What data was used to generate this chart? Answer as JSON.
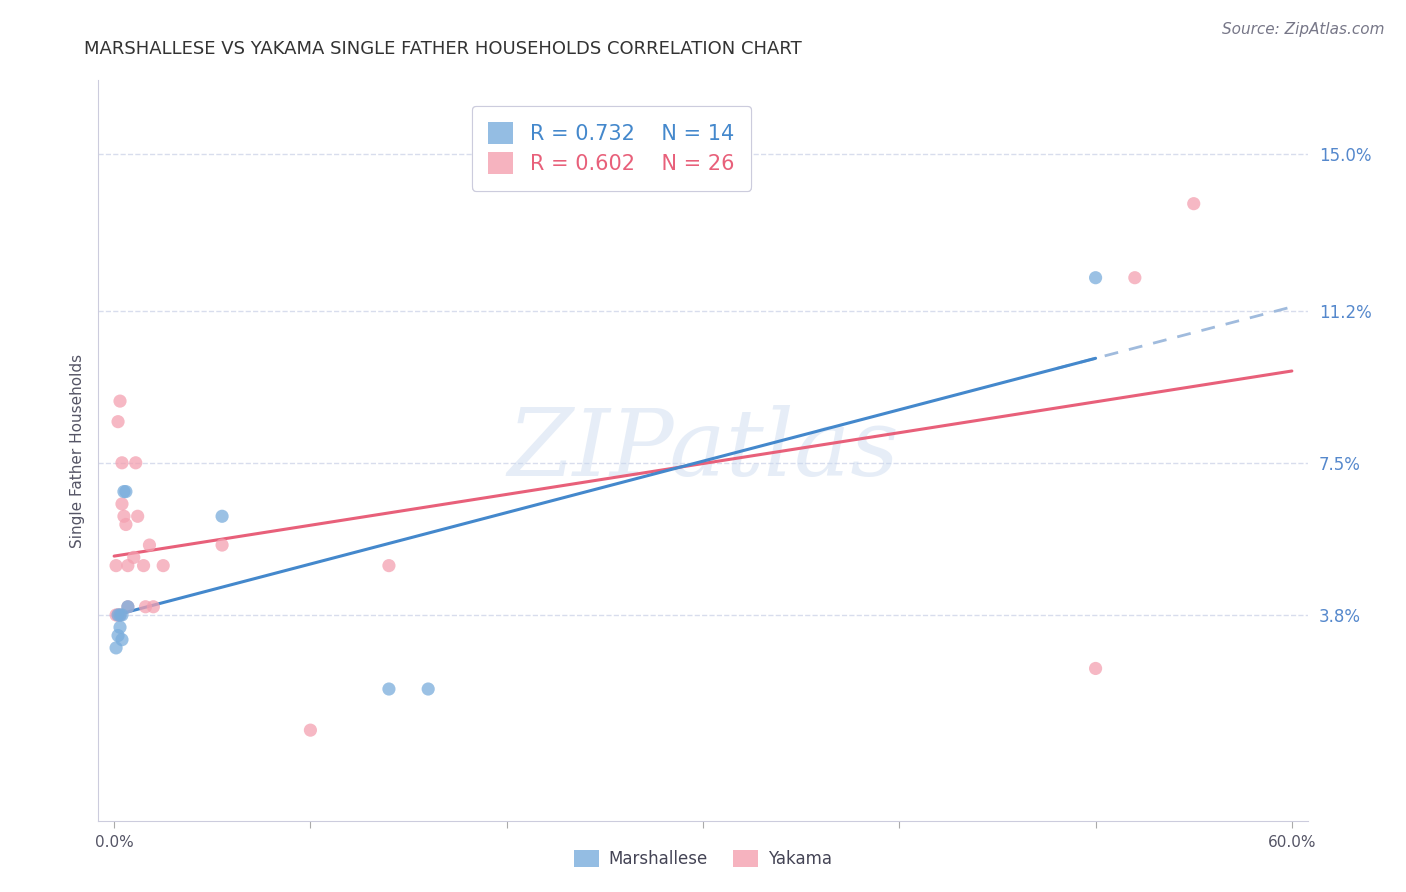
{
  "title": "MARSHALLESE VS YAKAMA SINGLE FATHER HOUSEHOLDS CORRELATION CHART",
  "source": "Source: ZipAtlas.com",
  "ylabel": "Single Father Households",
  "watermark": "ZIPatlas",
  "marshallese_color": "#7aaddc",
  "yakama_color": "#f4a0b0",
  "marshallese_label": "Marshallese",
  "yakama_label": "Yakama",
  "legend_blue_r": "R = 0.732",
  "legend_blue_n": "N = 14",
  "legend_pink_r": "R = 0.602",
  "legend_pink_n": "N = 26",
  "marshallese_x": [
    0.001,
    0.002,
    0.002,
    0.003,
    0.003,
    0.004,
    0.004,
    0.005,
    0.006,
    0.007,
    0.055,
    0.14,
    0.16,
    0.5
  ],
  "marshallese_y": [
    0.03,
    0.033,
    0.038,
    0.038,
    0.035,
    0.032,
    0.038,
    0.068,
    0.068,
    0.04,
    0.062,
    0.02,
    0.02,
    0.12
  ],
  "yakama_x": [
    0.001,
    0.001,
    0.002,
    0.002,
    0.003,
    0.003,
    0.004,
    0.004,
    0.005,
    0.006,
    0.007,
    0.007,
    0.01,
    0.011,
    0.012,
    0.015,
    0.016,
    0.018,
    0.02,
    0.025,
    0.055,
    0.1,
    0.14,
    0.5,
    0.52,
    0.55
  ],
  "yakama_y": [
    0.038,
    0.05,
    0.038,
    0.085,
    0.038,
    0.09,
    0.065,
    0.075,
    0.062,
    0.06,
    0.05,
    0.04,
    0.052,
    0.075,
    0.062,
    0.05,
    0.04,
    0.055,
    0.04,
    0.05,
    0.055,
    0.01,
    0.05,
    0.025,
    0.12,
    0.138
  ],
  "title_fontsize": 13,
  "axis_label_fontsize": 11,
  "tick_fontsize": 11,
  "legend_fontsize": 15,
  "source_fontsize": 11,
  "marker_size": 90,
  "line_color_blue": "#4488cc",
  "line_color_pink": "#e8607a",
  "line_color_dashed": "#a0bbdd",
  "background_color": "#ffffff",
  "grid_color": "#d8dded",
  "right_tick_color": "#5588cc",
  "xlim": [
    0.0,
    0.6
  ],
  "ylim_low": -0.012,
  "ylim_high": 0.168,
  "right_ytick_positions": [
    0.15,
    0.112,
    0.075,
    0.038
  ],
  "right_ytick_labels": [
    "15.0%",
    "11.2%",
    "7.5%",
    "3.8%"
  ],
  "blue_line_solid_x_end": 0.5,
  "blue_line_dashed_x_start": 0.48,
  "blue_line_x_start": 0.0
}
